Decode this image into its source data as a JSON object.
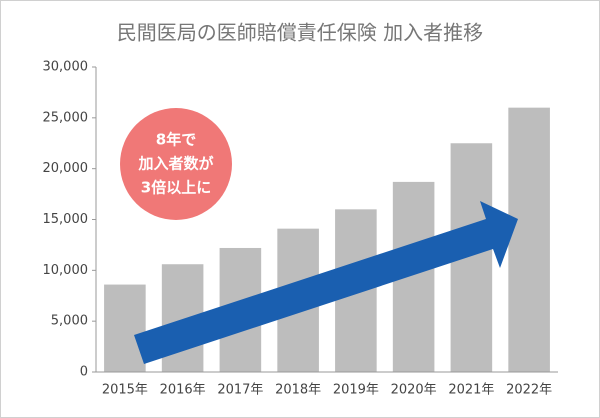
{
  "chart_data": {
    "type": "bar",
    "title": "民間医局の医師賠償責任保険 加入者推移",
    "categories": [
      "2015年",
      "2016年",
      "2017年",
      "2018年",
      "2019年",
      "2020年",
      "2021年",
      "2022年"
    ],
    "values": [
      8600,
      10600,
      12200,
      14100,
      16000,
      18700,
      22500,
      26000
    ],
    "color": "#bdbdbd",
    "ylim": [
      0,
      30000
    ],
    "yticks": [
      0,
      {
        "value": 5000,
        "label": "5,000"
      },
      {
        "value": 10000,
        "label": "10,000"
      },
      {
        "value": 15000,
        "label": "15,000"
      },
      {
        "value": 20000,
        "label": "20,000"
      },
      {
        "value": 25000,
        "label": "25,000"
      },
      {
        "value": 30000,
        "label": "30,000"
      }
    ],
    "grid": false,
    "annotation": [
      "8年で",
      "加入者数が",
      "3倍以上に"
    ]
  }
}
